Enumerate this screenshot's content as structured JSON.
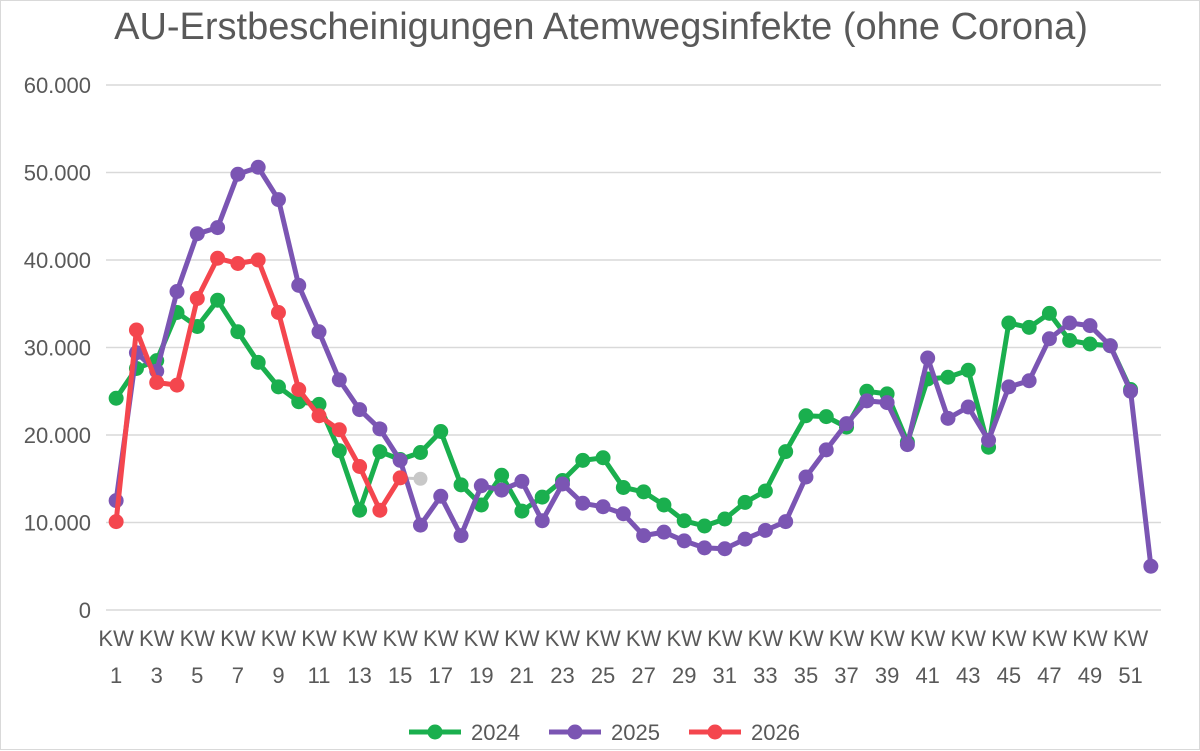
{
  "chart_data": {
    "type": "line",
    "title": "AU-Erstbescheinigungen Atemwegsinfekte (ohne Corona)",
    "ylim": [
      0,
      60000
    ],
    "y_ticks": [
      0,
      10000,
      20000,
      30000,
      40000,
      50000,
      60000
    ],
    "y_tick_labels": [
      "0",
      "10.000",
      "20.000",
      "30.000",
      "40.000",
      "50.000",
      "60.000"
    ],
    "x_tick_labels": [
      [
        "KW",
        "1"
      ],
      [
        "KW",
        "3"
      ],
      [
        "KW",
        "5"
      ],
      [
        "KW",
        "7"
      ],
      [
        "KW",
        "9"
      ],
      [
        "KW",
        "11"
      ],
      [
        "KW",
        "13"
      ],
      [
        "KW",
        "15"
      ],
      [
        "KW",
        "17"
      ],
      [
        "KW",
        "19"
      ],
      [
        "KW",
        "21"
      ],
      [
        "KW",
        "23"
      ],
      [
        "KW",
        "25"
      ],
      [
        "KW",
        "27"
      ],
      [
        "KW",
        "29"
      ],
      [
        "KW",
        "31"
      ],
      [
        "KW",
        "33"
      ],
      [
        "KW",
        "35"
      ],
      [
        "KW",
        "37"
      ],
      [
        "KW",
        "39"
      ],
      [
        "KW",
        "41"
      ],
      [
        "KW",
        "43"
      ],
      [
        "KW",
        "45"
      ],
      [
        "KW",
        "47"
      ],
      [
        "KW",
        "49"
      ],
      [
        "KW",
        "51"
      ]
    ],
    "x_tick_weeks": [
      1,
      3,
      5,
      7,
      9,
      11,
      13,
      15,
      17,
      19,
      21,
      23,
      25,
      27,
      29,
      31,
      33,
      35,
      37,
      39,
      41,
      43,
      45,
      47,
      49,
      51
    ],
    "weeks": 52,
    "grid": true,
    "legend_position": "bottom",
    "series": [
      {
        "name": "2024",
        "color": "#1aaf4e",
        "values": [
          24200,
          27600,
          28500,
          34000,
          32400,
          35400,
          31800,
          28300,
          25500,
          23800,
          23500,
          18200,
          11400,
          18100,
          17200,
          18000,
          20400,
          14300,
          12000,
          15400,
          11300,
          12900,
          14800,
          17100,
          17400,
          14000,
          13500,
          12000,
          10200,
          9600,
          10400,
          12300,
          13600,
          18100,
          22200,
          22100,
          20900,
          25000,
          24700,
          19200,
          26400,
          26600,
          27400,
          18600,
          32800,
          32300,
          33900,
          30800,
          30400,
          30200,
          25200
        ]
      },
      {
        "name": "2025",
        "color": "#7b55b3",
        "values": [
          12500,
          29400,
          27300,
          36400,
          43000,
          43700,
          49800,
          50600,
          46900,
          37100,
          31800,
          26300,
          22900,
          20700,
          17100,
          9700,
          13000,
          8500,
          14200,
          13700,
          14700,
          10200,
          14400,
          12200,
          11800,
          11000,
          8500,
          8900,
          7900,
          7100,
          7000,
          8100,
          9100,
          10100,
          15200,
          18300,
          21300,
          23900,
          23700,
          18900,
          28800,
          21900,
          23200,
          19400,
          25500,
          26200,
          31000,
          32800,
          32500,
          30200,
          25000,
          5000
        ]
      },
      {
        "name": "2026",
        "color": "#f4464e",
        "values": [
          10100,
          32000,
          26000,
          25700,
          35600,
          40200,
          39600,
          40000,
          34000,
          25200,
          22200,
          20600,
          16400,
          11400,
          15100
        ]
      }
    ],
    "extra_points": [
      {
        "week": 16,
        "value": 15000,
        "color": "#c8c8c8",
        "from_week": 15,
        "from_value": 15100
      }
    ]
  }
}
